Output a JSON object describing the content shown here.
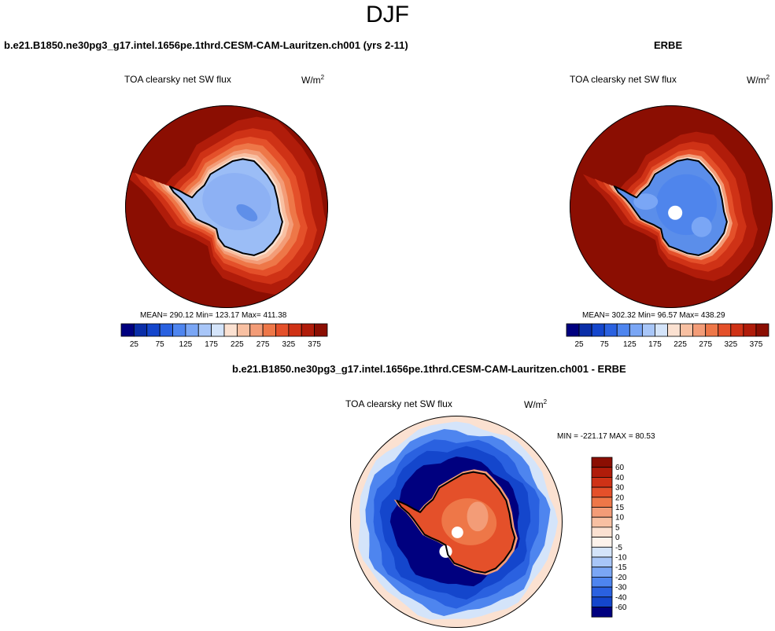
{
  "season": "DJF",
  "units_base": "W/m",
  "units_exp": "2",
  "panels": {
    "model": {
      "title": "b.e21.B1850.ne30pg3_g17.intel.1656pe.1thrd.CESM-CAM-Lauritzen.ch001 (yrs 2-11)",
      "subtitle": "TOA clearsky net SW flux",
      "stats": "MEAN= 290.12  Min= 123.17  Max= 411.38"
    },
    "obs": {
      "title": "ERBE",
      "subtitle": "TOA clearsky net SW flux",
      "stats": "MEAN= 302.32  Min=  96.57  Max= 438.29"
    },
    "diff": {
      "title": "b.e21.B1850.ne30pg3_g17.intel.1656pe.1thrd.CESM-CAM-Lauritzen.ch001 - ERBE",
      "subtitle": "TOA clearsky net SW flux",
      "stats": "MIN = -221.17 MAX =  80.53"
    }
  },
  "chart_data": [
    {
      "type": "heatmap",
      "projection": "south-polar-stereographic",
      "title": "b.e21.B1850.ne30pg3_g17.intel.1656pe.1thrd.CESM-CAM-Lauritzen.ch001 (yrs 2-11)",
      "variable": "TOA clearsky net SW flux",
      "units": "W/m2",
      "stats": {
        "mean": 290.12,
        "min": 123.17,
        "max": 411.38
      },
      "colorbar": {
        "orientation": "horizontal",
        "tick_labels": [
          "25",
          "75",
          "125",
          "175",
          "225",
          "275",
          "325",
          "375"
        ],
        "colors": [
          "#00007f",
          "#0a2ea8",
          "#1446cc",
          "#2a61e0",
          "#4e85ef",
          "#7aa6f5",
          "#a8c6f8",
          "#d4e4fa",
          "#fbe1d1",
          "#f8c0a2",
          "#f39c77",
          "#ee7748",
          "#e4502a",
          "#cf3216",
          "#b01c0a",
          "#8b0e02"
        ]
      },
      "features": {
        "ocean_value_approx": 380,
        "antarctic_interior_value_approx": 110
      }
    },
    {
      "type": "heatmap",
      "projection": "south-polar-stereographic",
      "title": "ERBE",
      "variable": "TOA clearsky net SW flux",
      "units": "W/m2",
      "stats": {
        "mean": 302.32,
        "min": 96.57,
        "max": 438.29
      },
      "colorbar": {
        "orientation": "horizontal",
        "tick_labels": [
          "25",
          "75",
          "125",
          "175",
          "225",
          "275",
          "325",
          "375"
        ],
        "colors": [
          "#00007f",
          "#0a2ea8",
          "#1446cc",
          "#2a61e0",
          "#4e85ef",
          "#7aa6f5",
          "#a8c6f8",
          "#d4e4fa",
          "#fbe1d1",
          "#f8c0a2",
          "#f39c77",
          "#ee7748",
          "#e4502a",
          "#cf3216",
          "#b01c0a",
          "#8b0e02"
        ]
      },
      "features": {
        "ocean_value_approx": 390,
        "antarctic_interior_value_approx": 100
      }
    },
    {
      "type": "heatmap",
      "projection": "south-polar-stereographic",
      "title": "b.e21.B1850.ne30pg3_g17.intel.1656pe.1thrd.CESM-CAM-Lauritzen.ch001 - ERBE",
      "variable": "TOA clearsky net SW flux",
      "units": "W/m2",
      "stats": {
        "min": -221.17,
        "max": 80.53
      },
      "colorbar": {
        "orientation": "vertical",
        "tick_labels": [
          "60",
          "40",
          "30",
          "20",
          "15",
          "10",
          "5",
          "0",
          "-5",
          "-10",
          "-15",
          "-20",
          "-30",
          "-40",
          "-60"
        ],
        "colors": [
          "#8b0e02",
          "#b01c0a",
          "#cf3216",
          "#e4502a",
          "#ee7748",
          "#f39c77",
          "#f8c0a2",
          "#fbe1d1",
          "#fdf3ec",
          "#d4e4fa",
          "#a8c6f8",
          "#7aa6f5",
          "#4e85ef",
          "#2a61e0",
          "#1446cc",
          "#00007f"
        ]
      },
      "features": {
        "antarctic_value_approx": 25,
        "sea_ice_ring_value_approx": -60
      }
    }
  ]
}
